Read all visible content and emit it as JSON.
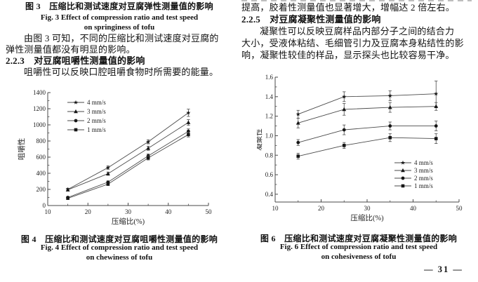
{
  "page": {
    "number": "— 31 —"
  },
  "colors": {
    "line": "#4a4a4a",
    "marker": "#161616",
    "text": "#222222"
  },
  "left_column": {
    "fig3_caption_zh": "图 3　压缩比和测试速度对豆腐弹性测量值的影响",
    "fig3_caption_en_line1": "Fig. 3 Effect of compression ratio and test speed",
    "fig3_caption_en_line2": "on springiness of tofu",
    "paragraph1_line1": "由图 3 可知，不同的压缩比和测试速度对豆腐的",
    "paragraph1_line2": "弹性测量值都没有明显的影响。",
    "section_heading": "2.2.3　对豆腐咀嚼性测量值的影响",
    "paragraph2": "咀嚼性可以反映口腔咀嚼食物时所需要的能量。"
  },
  "right_column": {
    "paragraph1": "提高，胶着性测量值也显著增大，增幅达 2 倍左右。",
    "section_heading": "2.2.5　对豆腐凝聚性测量值的影响",
    "paragraph2_line1": "凝聚性可以反映豆腐样品内部分子之间的结合力",
    "paragraph2_line2": "大小，受液体粘结、毛细管引力及豆腐本身粘结性的影",
    "paragraph2_line3": "响，凝聚性较佳的样品，显示探头也比较容易干净。"
  },
  "chart_data": [
    {
      "id": "fig4",
      "type": "line",
      "title": "",
      "xlabel": "压缩比(%)",
      "ylabel": "咀嚼性",
      "x": [
        15,
        25,
        35,
        45
      ],
      "xlim": [
        10,
        50
      ],
      "xticks": [
        10,
        20,
        30,
        40,
        50
      ],
      "xtick_labels": [
        "10",
        "20",
        "30",
        "40",
        "50"
      ],
      "ylim": [
        0,
        1400
      ],
      "yticks": [
        0,
        200,
        400,
        600,
        800,
        1000,
        1200,
        1400
      ],
      "ytick_labels": [
        "0",
        "200",
        "400",
        "600",
        "800",
        "1000",
        "1200",
        "1400"
      ],
      "grid": false,
      "legend_position": "top-left",
      "series": [
        {
          "name": "4 mm/s",
          "marker": "star",
          "values": [
            200,
            470,
            790,
            1150
          ],
          "errors": [
            15,
            20,
            25,
            45
          ]
        },
        {
          "name": "3 mm/s",
          "marker": "triangle",
          "values": [
            195,
            395,
            710,
            1030
          ],
          "errors": [
            15,
            20,
            25,
            35
          ]
        },
        {
          "name": "2 mm/s",
          "marker": "circle",
          "values": [
            100,
            290,
            615,
            920
          ],
          "errors": [
            10,
            15,
            25,
            30
          ]
        },
        {
          "name": "1 mm/s",
          "marker": "square",
          "values": [
            90,
            265,
            590,
            880
          ],
          "errors": [
            10,
            15,
            25,
            30
          ]
        }
      ],
      "caption_zh": "图 4　压缩比和测试速度对豆腐咀嚼性测量值的影响",
      "caption_en_line1": "Fig. 4 Effect of compression ratio and test speed",
      "caption_en_line2": "on chewiness of tofu"
    },
    {
      "id": "fig6",
      "type": "line",
      "title": "",
      "xlabel": "压缩比(%)",
      "ylabel": "凝聚性",
      "x": [
        15,
        25,
        35,
        45
      ],
      "xlim": [
        10,
        50
      ],
      "xticks": [
        10,
        20,
        30,
        40,
        50
      ],
      "xtick_labels": [
        "10",
        "20",
        "30",
        "40",
        "50"
      ],
      "ylim": [
        0.32,
        1.6
      ],
      "yticks": [
        0.4,
        0.6,
        0.8,
        1.0,
        1.2,
        1.4,
        1.6
      ],
      "ytick_labels": [
        "0.4",
        "0.6",
        "0.8",
        "1.0",
        "1.2",
        "1.4",
        "1.6"
      ],
      "grid": false,
      "legend_position": "bottom-right",
      "series": [
        {
          "name": "4 mm/s",
          "marker": "star",
          "values": [
            1.22,
            1.4,
            1.41,
            1.43
          ],
          "errors": [
            0.04,
            0.05,
            0.05,
            0.13
          ]
        },
        {
          "name": "3 mm/s",
          "marker": "triangle",
          "values": [
            1.13,
            1.27,
            1.29,
            1.3
          ],
          "errors": [
            0.05,
            0.06,
            0.05,
            0.04
          ]
        },
        {
          "name": "2 mm/s",
          "marker": "circle",
          "values": [
            0.93,
            1.06,
            1.1,
            1.1
          ],
          "errors": [
            0.03,
            0.05,
            0.04,
            0.05
          ]
        },
        {
          "name": "1 mm/s",
          "marker": "square",
          "values": [
            0.79,
            0.9,
            0.98,
            0.97
          ],
          "errors": [
            0.03,
            0.03,
            0.04,
            0.05
          ]
        }
      ],
      "caption_zh": "图 6　压缩比和测试速度对豆腐凝聚性测量值的影响",
      "caption_en_line1": "Fig. 6 Effect of compression ratio and test speed",
      "caption_en_line2": "on cohesiveness of tofu"
    }
  ]
}
